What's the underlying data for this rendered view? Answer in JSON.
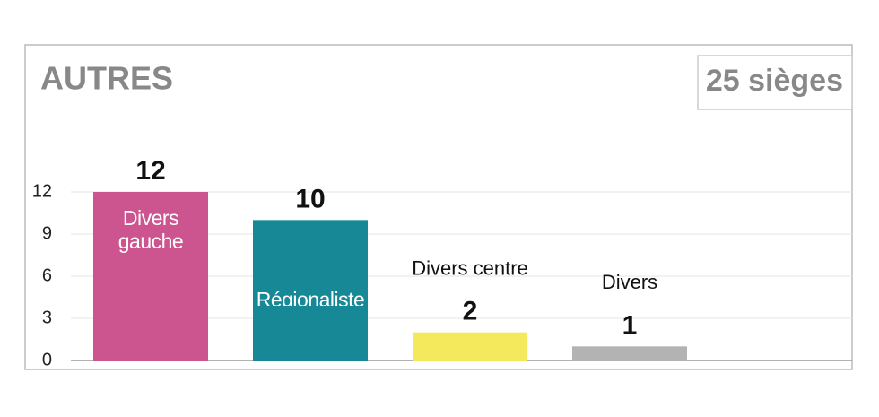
{
  "chart_data": {
    "type": "bar",
    "title": "AUTRES",
    "badge": "25 sièges",
    "categories": [
      "Divers gauche",
      "Régionaliste",
      "Divers centre",
      "Divers"
    ],
    "values": [
      12,
      10,
      2,
      1
    ],
    "colors": [
      "#cc5590",
      "#168896",
      "#f4e85c",
      "#b3b3b3"
    ],
    "ylim": [
      0,
      12
    ],
    "yticks": [
      0,
      3,
      6,
      9,
      12
    ],
    "grid": true
  }
}
